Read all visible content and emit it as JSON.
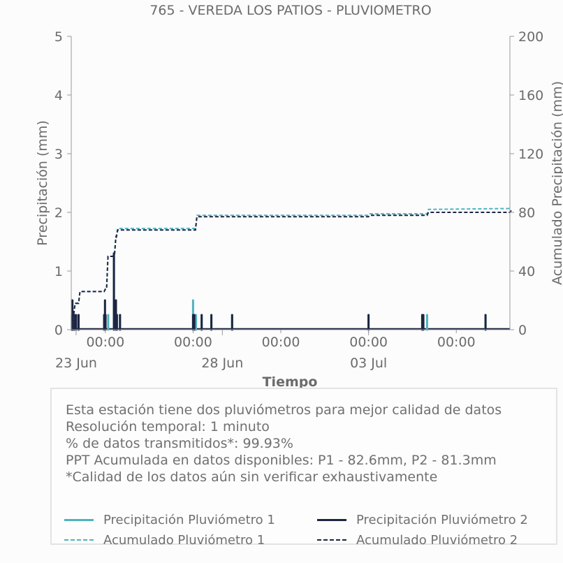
{
  "chart_data": {
    "type": "bar",
    "title": "765 - VEREDA LOS PATIOS - PLUVIOMETRO",
    "xlabel": "Tiempo",
    "ylabel": "Precipitación (mm)",
    "ylabel_right": "Acumulado Precipitación (mm)",
    "ylim": [
      0,
      5
    ],
    "ylim_right": [
      0,
      200
    ],
    "yticks": [
      0,
      1,
      2,
      3,
      4,
      5
    ],
    "yticks_right": [
      0,
      40,
      80,
      120,
      160,
      200
    ],
    "x_range": [
      "2025-06-22T20:00",
      "2025-07-07T20:00"
    ],
    "xticks": [
      {
        "x": "2025-06-24T00:00",
        "label": "00:00"
      },
      {
        "x": "2025-06-27T00:00",
        "label": "00:00"
      },
      {
        "x": "2025-06-30T00:00",
        "label": "00:00"
      },
      {
        "x": "2025-07-03T00:00",
        "label": "00:00"
      },
      {
        "x": "2025-07-06T00:00",
        "label": "00:00"
      }
    ],
    "date_labels": [
      {
        "x": "2025-06-23T00:00",
        "label": "23 Jun"
      },
      {
        "x": "2025-06-28T00:00",
        "label": "28 Jun"
      },
      {
        "x": "2025-07-03T00:00",
        "label": "03 Jul"
      }
    ],
    "grid": false,
    "legend_position": "bottom",
    "series": [
      {
        "name": "Precipitación Pluviómetro 1",
        "kind": "bar",
        "axis": "left",
        "color": "#4fb3bf",
        "x": [
          "2025-06-22T20:30",
          "2025-06-22T21:30",
          "2025-06-23T02:00",
          "2025-06-23T23:00",
          "2025-06-24T00:00",
          "2025-06-24T02:20",
          "2025-06-24T07:00",
          "2025-06-24T08:40",
          "2025-06-24T09:30",
          "2025-06-24T12:00",
          "2025-06-27T00:00",
          "2025-06-27T02:20",
          "2025-06-27T07:00",
          "2025-06-27T15:00",
          "2025-06-28T08:00",
          "2025-07-03T00:00",
          "2025-07-05T00:00",
          "2025-07-07T00:00"
        ],
        "values": [
          0.25,
          0.25,
          0.25,
          0.25,
          0.25,
          0.25,
          1.3,
          0.5,
          0.25,
          0.25,
          0.5,
          0.25,
          0.25,
          0.25,
          0.25,
          0.25,
          0.25,
          0.25
        ]
      },
      {
        "name": "Precipitación Pluviómetro 2",
        "kind": "bar",
        "axis": "left",
        "color": "#1c2541",
        "x": [
          "2025-06-22T20:30",
          "2025-06-22T21:00",
          "2025-06-22T21:30",
          "2025-06-22T22:30",
          "2025-06-23T00:00",
          "2025-06-23T02:00",
          "2025-06-23T23:00",
          "2025-06-23T23:40",
          "2025-06-24T00:10",
          "2025-06-24T07:00",
          "2025-06-24T08:40",
          "2025-06-24T09:30",
          "2025-06-24T12:00",
          "2025-06-27T00:00",
          "2025-06-27T01:00",
          "2025-06-27T07:00",
          "2025-06-27T15:00",
          "2025-06-28T08:00",
          "2025-07-03T00:00",
          "2025-07-04T20:00",
          "2025-07-04T21:00",
          "2025-07-07T00:00"
        ],
        "values": [
          0.25,
          0.5,
          0.25,
          0.25,
          0.25,
          0.25,
          0.25,
          0.5,
          0.25,
          1.3,
          0.5,
          0.25,
          0.25,
          0.25,
          0.25,
          0.25,
          0.25,
          0.25,
          0.25,
          0.25,
          0.25,
          0.25
        ]
      },
      {
        "name": "Acumulado Pluviómetro 1",
        "kind": "step-line",
        "axis": "right",
        "dashed": true,
        "color": "#4fb3bf",
        "x": [
          "2025-06-22T20:00",
          "2025-06-22T21:00",
          "2025-06-22T22:00",
          "2025-06-23T02:00",
          "2025-06-23T23:00",
          "2025-06-24T01:00",
          "2025-06-24T06:00",
          "2025-06-24T07:30",
          "2025-06-24T09:00",
          "2025-06-26T23:00",
          "2025-06-27T02:00",
          "2025-07-03T00:00",
          "2025-07-05T00:00",
          "2025-07-07T20:00"
        ],
        "values": [
          0,
          10,
          18,
          26,
          28,
          50,
          51,
          64,
          69,
          69,
          78,
          79,
          82,
          82.6
        ]
      },
      {
        "name": "Acumulado Pluviómetro 2",
        "kind": "step-line",
        "axis": "right",
        "dashed": true,
        "color": "#1c2541",
        "x": [
          "2025-06-22T20:00",
          "2025-06-22T21:00",
          "2025-06-22T22:00",
          "2025-06-23T02:00",
          "2025-06-23T23:00",
          "2025-06-24T01:00",
          "2025-06-24T06:00",
          "2025-06-24T07:30",
          "2025-06-24T09:00",
          "2025-06-26T23:00",
          "2025-06-27T02:00",
          "2025-07-03T00:00",
          "2025-07-05T00:00",
          "2025-07-07T20:00"
        ],
        "values": [
          0,
          10,
          18,
          26,
          28,
          50,
          51,
          63,
          68,
          68,
          77,
          78,
          80,
          81.3
        ]
      }
    ]
  },
  "info": {
    "lines": [
      "Esta estación tiene dos pluviómetros para mejor calidad de datos",
      "Resolución temporal: 1 minuto",
      "% de datos transmitidos*: 99.93%",
      "PPT Acumulada en datos disponibles: P1 - 82.6mm, P2 - 81.3mm",
      "*Calidad de los datos aún sin verificar exhaustivamente"
    ]
  },
  "legend": {
    "items": [
      {
        "label": "Precipitación Pluviómetro 1",
        "color": "#4fb3bf",
        "style": "solid"
      },
      {
        "label": "Precipitación Pluviómetro 2",
        "color": "#1c2541",
        "style": "solid"
      },
      {
        "label": "Acumulado Pluviómetro 1",
        "color": "#4fb3bf",
        "style": "dashed"
      },
      {
        "label": "Acumulado Pluviómetro 2",
        "color": "#1c2541",
        "style": "dashed"
      }
    ]
  }
}
